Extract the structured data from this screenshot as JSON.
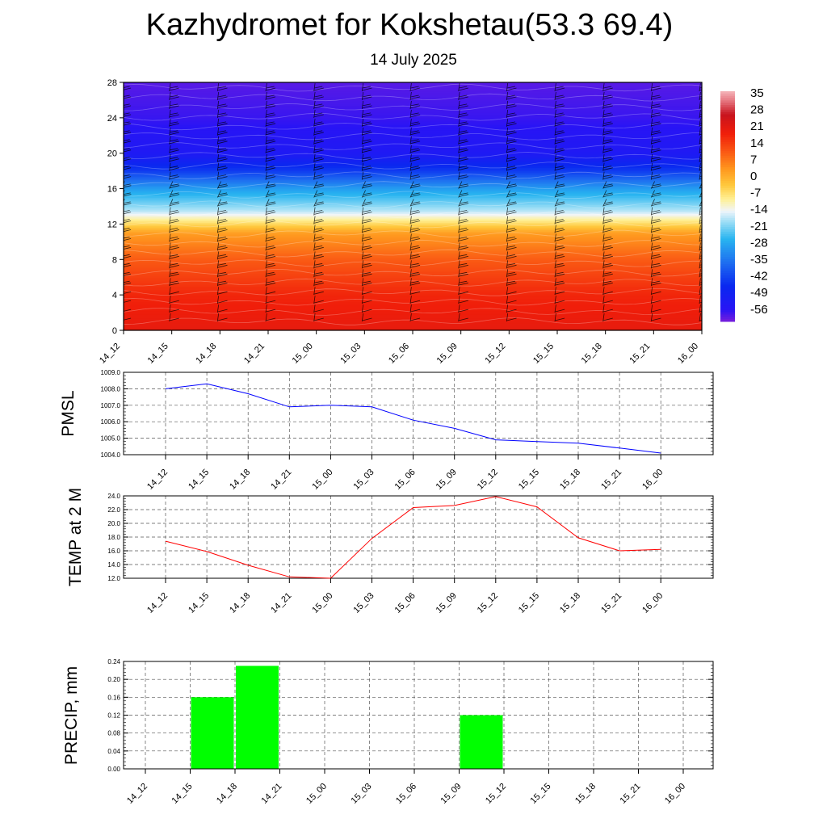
{
  "header": {
    "title": "Kazhydromet for Kokshetau(53.3 69.4)",
    "date": "14 July 2025"
  },
  "chart_data": [
    {
      "type": "heatmap",
      "title": "",
      "xlabel": "",
      "ylabel": "",
      "x_tick_labels": [
        "14_12",
        "14_15",
        "14_18",
        "14_21",
        "15_00",
        "15_03",
        "15_06",
        "15_09",
        "15_12",
        "15_15",
        "15_18",
        "15_21",
        "16_00"
      ],
      "y_ticks": [
        0,
        4,
        8,
        12,
        16,
        20,
        24,
        28
      ],
      "ylim": [
        0,
        28
      ],
      "colorbar": {
        "labels": [
          "35",
          "28",
          "21",
          "14",
          "7",
          "0",
          "-7",
          "-14",
          "-21",
          "-28",
          "-35",
          "-42",
          "-49",
          "-56"
        ],
        "range": [
          -60,
          38
        ]
      },
      "temperature_by_level": [
        {
          "level": 0,
          "value": 22
        },
        {
          "level": 4,
          "value": 19
        },
        {
          "level": 8,
          "value": 12
        },
        {
          "level": 11,
          "value": 4
        },
        {
          "level": 12.5,
          "value": -8
        },
        {
          "level": 13.5,
          "value": -16
        },
        {
          "level": 16,
          "value": -28
        },
        {
          "level": 18,
          "value": -42
        },
        {
          "level": 20,
          "value": -52
        },
        {
          "level": 24,
          "value": -56
        },
        {
          "level": 28,
          "value": -58
        }
      ],
      "wind_barbs": "present at every 3-hour step and 1 km level"
    },
    {
      "type": "line",
      "ylabel": "PMSL",
      "x_tick_labels": [
        "14_12",
        "14_15",
        "14_18",
        "14_21",
        "15_00",
        "15_03",
        "15_06",
        "15_09",
        "15_12",
        "15_15",
        "15_18",
        "15_21",
        "16_00"
      ],
      "y_tick_labels": [
        "1004.0",
        "1005.0",
        "1006.0",
        "1007.0",
        "1008.0",
        "1009.0"
      ],
      "ylim": [
        1004,
        1009
      ],
      "series": [
        {
          "color": "#0000ff",
          "values": [
            1008.0,
            1008.3,
            1007.7,
            1006.9,
            1007.0,
            1006.9,
            1006.1,
            1005.6,
            1004.9,
            1004.8,
            1004.7,
            1004.4,
            1004.1
          ]
        }
      ]
    },
    {
      "type": "line",
      "ylabel": "TEMP at 2 M",
      "x_tick_labels": [
        "14_12",
        "14_15",
        "14_18",
        "14_21",
        "15_00",
        "15_03",
        "15_06",
        "15_09",
        "15_12",
        "15_15",
        "15_18",
        "15_21",
        "16_00"
      ],
      "y_tick_labels": [
        "12.0",
        "14.0",
        "16.0",
        "18.0",
        "20.0",
        "22.0",
        "24.0"
      ],
      "ylim": [
        12,
        24
      ],
      "series": [
        {
          "color": "#ff0000",
          "values": [
            17.4,
            15.9,
            13.9,
            12.2,
            12.0,
            17.8,
            22.3,
            22.6,
            23.9,
            22.4,
            17.9,
            16.0,
            16.2
          ]
        }
      ]
    },
    {
      "type": "bar",
      "ylabel": "PRECIP, mm",
      "x_tick_labels": [
        "14_12",
        "14_15",
        "14_18",
        "14_21",
        "15_00",
        "15_03",
        "15_06",
        "15_09",
        "15_12",
        "15_15",
        "15_18",
        "15_21",
        "16_00"
      ],
      "y_tick_labels": [
        "0.00",
        "0.04",
        "0.08",
        "0.12",
        "0.16",
        "0.20",
        "0.24"
      ],
      "ylim": [
        0,
        0.24
      ],
      "bar_color": "#00ff00",
      "values": [
        0,
        0.16,
        0.23,
        0,
        0,
        0,
        0,
        0.12,
        0,
        0,
        0,
        0,
        0
      ]
    }
  ]
}
